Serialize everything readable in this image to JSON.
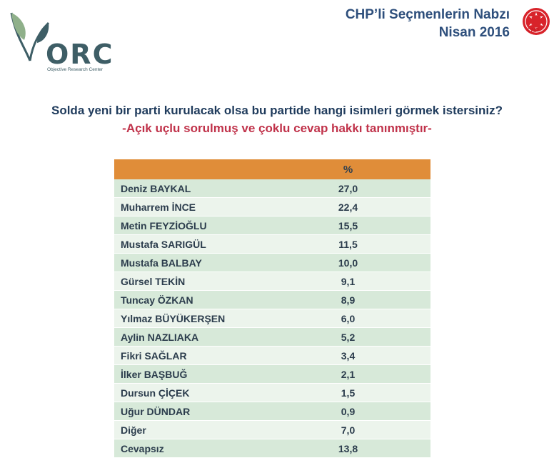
{
  "header": {
    "logo_text": "ORC",
    "logo_subtitle": "Objective Research Center",
    "title_line1": "CHP’li Seçmenlerin Nabzı",
    "title_line2": "Nisan 2016",
    "party_logo_label": "CHP"
  },
  "question": "Solda yeni bir parti kurulacak olsa bu partide hangi isimleri görmek istersiniz?",
  "note": "-Açık uçlu sorulmuş ve çoklu cevap hakkı tanınmıştır-",
  "colors": {
    "header_bar": "#e08d39",
    "row_odd": "#d7e9d9",
    "row_even": "#ecf4ec",
    "title": "#2e4f7c",
    "note": "#c0324a"
  },
  "chart_data": {
    "type": "table",
    "columns": [
      "",
      "%"
    ],
    "rows": [
      {
        "name": "Deniz BAYKAL",
        "value": "27,0"
      },
      {
        "name": "Muharrem İNCE",
        "value": "22,4"
      },
      {
        "name": "Metin FEYZİOĞLU",
        "value": "15,5"
      },
      {
        "name": "Mustafa SARIGÜL",
        "value": "11,5"
      },
      {
        "name": "Mustafa BALBAY",
        "value": "10,0"
      },
      {
        "name": "Gürsel TEKİN",
        "value": "9,1"
      },
      {
        "name": "Tuncay ÖZKAN",
        "value": "8,9"
      },
      {
        "name": "Yılmaz BÜYÜKERŞEN",
        "value": "6,0"
      },
      {
        "name": "Aylin NAZLIAKA",
        "value": "5,2"
      },
      {
        "name": "Fikri SAĞLAR",
        "value": "3,4"
      },
      {
        "name": "İlker BAŞBUĞ",
        "value": "2,1"
      },
      {
        "name": "Dursun ÇİÇEK",
        "value": "1,5"
      },
      {
        "name": "Uğur DÜNDAR",
        "value": "0,9"
      },
      {
        "name": "Diğer",
        "value": "7,0"
      },
      {
        "name": "Cevapsız",
        "value": "13,8"
      }
    ]
  }
}
